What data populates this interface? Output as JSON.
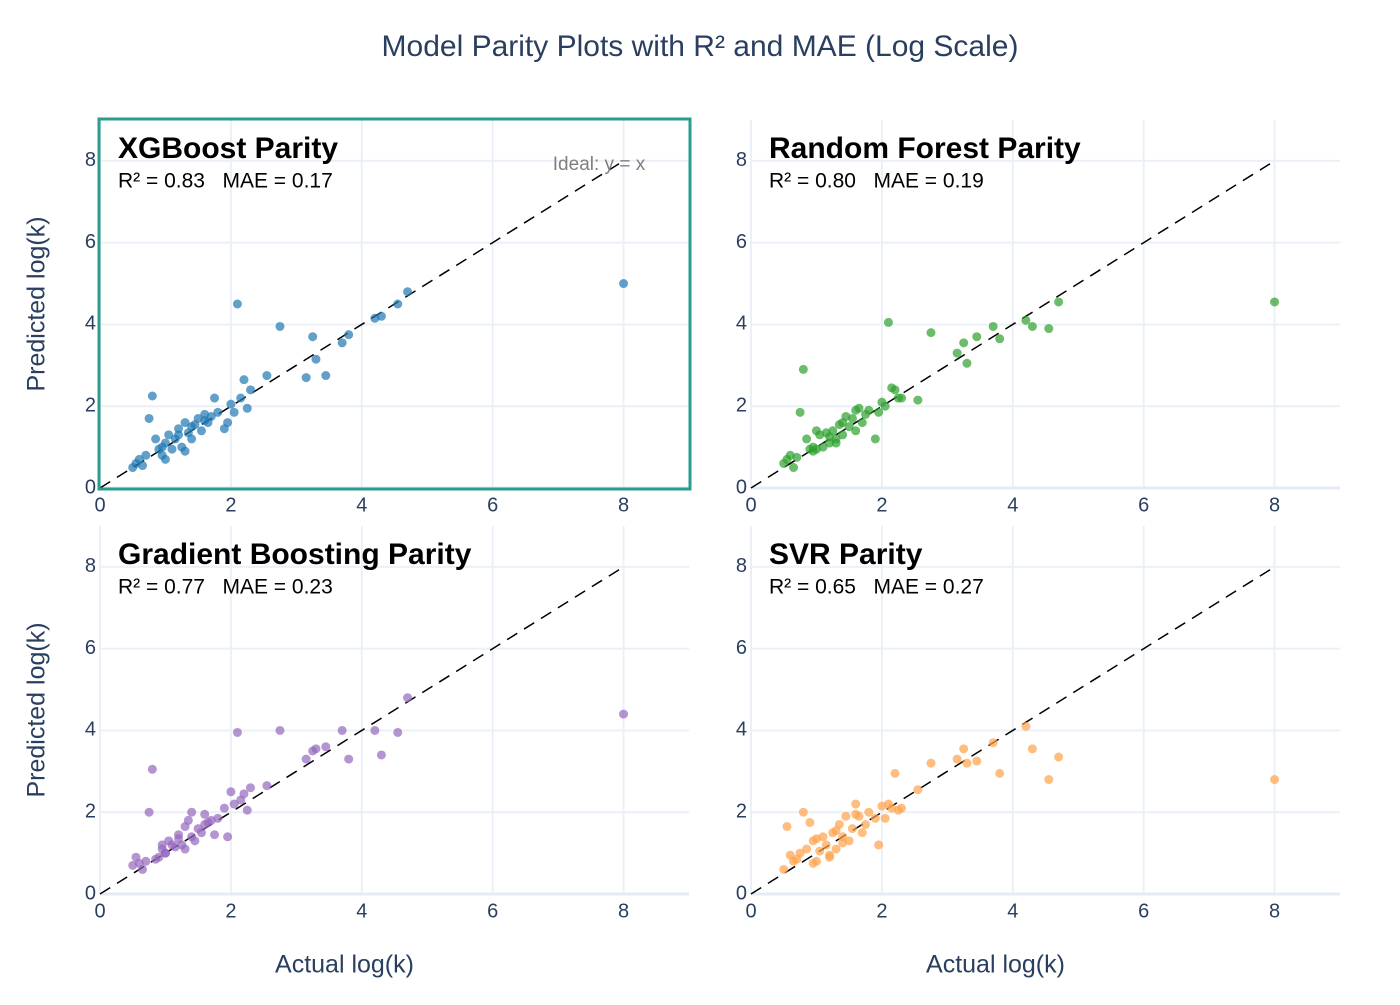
{
  "title": "Model Parity Plots with R² and MAE (Log Scale)",
  "chart_data": [
    {
      "type": "scatter",
      "title": "XGBoost Parity",
      "subtitle": "R² = 0.83   MAE = 0.17",
      "annotation": "Ideal: y = x",
      "highlighted": true,
      "ylabel": "Predicted log(k)",
      "color": "#1f77b4",
      "grid": true,
      "xlim": [
        0,
        9
      ],
      "ylim": [
        0,
        9
      ],
      "xticks": [
        0,
        2,
        4,
        6,
        8
      ],
      "yticks": [
        0,
        2,
        4,
        6,
        8
      ],
      "reference_line": {
        "x": [
          0,
          8
        ],
        "y": [
          0,
          8
        ]
      },
      "x": [
        8,
        2.1,
        2.75,
        3.25,
        3.3,
        3.15,
        3.45,
        3.7,
        3.8,
        4.2,
        4.3,
        4.55,
        4.7,
        2.55,
        2.3,
        2.2,
        2.15,
        2.0,
        1.95,
        1.9,
        1.8,
        1.75,
        1.7,
        1.65,
        1.6,
        1.55,
        1.5,
        1.45,
        1.4,
        1.35,
        1.3,
        1.25,
        1.2,
        1.15,
        1.1,
        1.05,
        1.0,
        0.95,
        0.9,
        0.85,
        0.8,
        0.75,
        0.7,
        0.65,
        0.6,
        0.55,
        0.5,
        1.3,
        1.0,
        2.05,
        1.2,
        0.95,
        1.6,
        2.25,
        1.4
      ],
      "y": [
        5.0,
        4.5,
        3.95,
        3.7,
        3.15,
        2.7,
        2.75,
        3.55,
        3.75,
        4.15,
        4.2,
        4.5,
        4.8,
        2.75,
        2.4,
        2.65,
        2.2,
        2.05,
        1.6,
        1.45,
        1.85,
        2.2,
        1.75,
        1.6,
        1.8,
        1.4,
        1.7,
        1.55,
        1.2,
        1.35,
        1.6,
        1.0,
        1.45,
        1.2,
        0.95,
        1.3,
        1.1,
        0.8,
        0.95,
        1.2,
        2.25,
        1.7,
        0.8,
        0.55,
        0.7,
        0.6,
        0.5,
        0.9,
        0.7,
        1.85,
        1.3,
        1.0,
        1.65,
        1.95,
        1.5
      ]
    },
    {
      "type": "scatter",
      "title": "Random Forest Parity",
      "subtitle": "R² = 0.80   MAE = 0.19",
      "color": "#2ca02c",
      "grid": true,
      "xlim": [
        0,
        9
      ],
      "ylim": [
        0,
        9
      ],
      "xticks": [
        0,
        2,
        4,
        6,
        8
      ],
      "yticks": [
        0,
        2,
        4,
        6,
        8
      ],
      "reference_line": {
        "x": [
          0,
          8
        ],
        "y": [
          0,
          8
        ]
      },
      "x": [
        8,
        2.1,
        2.75,
        3.25,
        3.3,
        3.15,
        3.45,
        3.7,
        3.8,
        4.2,
        4.3,
        4.55,
        4.7,
        2.55,
        2.3,
        2.2,
        2.15,
        2.0,
        1.95,
        1.9,
        1.8,
        1.75,
        1.7,
        1.65,
        1.6,
        1.55,
        1.5,
        1.45,
        1.4,
        1.35,
        1.3,
        1.25,
        1.2,
        1.15,
        1.1,
        1.05,
        1.0,
        0.95,
        0.9,
        0.85,
        0.8,
        0.75,
        0.7,
        0.65,
        0.6,
        0.55,
        0.5,
        1.3,
        1.0,
        2.05,
        1.2,
        0.95,
        1.6,
        2.25,
        1.4
      ],
      "y": [
        4.55,
        4.05,
        3.8,
        3.55,
        3.05,
        3.3,
        3.7,
        3.95,
        3.65,
        4.1,
        3.95,
        3.9,
        4.55,
        2.15,
        2.2,
        2.4,
        2.45,
        2.1,
        1.85,
        1.2,
        1.9,
        1.8,
        1.6,
        1.95,
        1.9,
        1.7,
        1.5,
        1.75,
        1.3,
        1.55,
        1.2,
        1.4,
        1.1,
        1.35,
        1.0,
        1.3,
        1.4,
        1.0,
        0.95,
        1.2,
        2.9,
        1.85,
        0.75,
        0.5,
        0.8,
        0.7,
        0.6,
        1.1,
        0.95,
        2.0,
        1.25,
        0.9,
        1.4,
        2.2,
        1.6
      ]
    },
    {
      "type": "scatter",
      "title": "Gradient Boosting Parity",
      "subtitle": "R² = 0.77   MAE = 0.23",
      "xlabel": "Actual log(k)",
      "ylabel": "Predicted log(k)",
      "color": "#9467bd",
      "grid": true,
      "xlim": [
        0,
        9
      ],
      "ylim": [
        0,
        9
      ],
      "xticks": [
        0,
        2,
        4,
        6,
        8
      ],
      "yticks": [
        0,
        2,
        4,
        6,
        8
      ],
      "reference_line": {
        "x": [
          0,
          8
        ],
        "y": [
          0,
          8
        ]
      },
      "x": [
        8,
        2.1,
        2.75,
        3.25,
        3.3,
        3.15,
        3.45,
        3.7,
        3.8,
        4.2,
        4.3,
        4.55,
        4.7,
        2.55,
        2.3,
        2.2,
        2.15,
        2.0,
        1.95,
        1.9,
        1.8,
        1.75,
        1.7,
        1.65,
        1.6,
        1.55,
        1.5,
        1.45,
        1.4,
        1.35,
        1.3,
        1.25,
        1.2,
        1.15,
        1.1,
        1.05,
        1.0,
        0.95,
        0.9,
        0.85,
        0.8,
        0.75,
        0.7,
        0.65,
        0.6,
        0.55,
        0.5,
        1.3,
        1.0,
        2.05,
        1.2,
        0.95,
        1.6,
        2.25,
        1.4
      ],
      "y": [
        4.4,
        3.95,
        4.0,
        3.5,
        3.55,
        3.3,
        3.6,
        4.0,
        3.3,
        4.0,
        3.4,
        3.95,
        4.8,
        2.65,
        2.6,
        2.45,
        2.3,
        2.5,
        1.4,
        2.1,
        1.85,
        1.45,
        1.8,
        1.75,
        1.95,
        1.5,
        1.6,
        1.3,
        1.4,
        1.8,
        1.65,
        1.2,
        1.45,
        1.15,
        1.2,
        1.3,
        1.0,
        1.1,
        0.9,
        0.85,
        3.05,
        2.0,
        0.8,
        0.6,
        0.75,
        0.9,
        0.7,
        1.1,
        1.0,
        2.2,
        1.35,
        1.2,
        1.7,
        2.05,
        2.0
      ]
    },
    {
      "type": "scatter",
      "title": "SVR Parity",
      "subtitle": "R² = 0.65   MAE = 0.27",
      "xlabel": "Actual log(k)",
      "color": "#ffa24a",
      "grid": true,
      "xlim": [
        0,
        9
      ],
      "ylim": [
        0,
        9
      ],
      "xticks": [
        0,
        2,
        4,
        6,
        8
      ],
      "yticks": [
        0,
        2,
        4,
        6,
        8
      ],
      "reference_line": {
        "x": [
          0,
          8
        ],
        "y": [
          0,
          8
        ]
      },
      "x": [
        8,
        2.1,
        2.75,
        3.25,
        3.3,
        3.15,
        3.45,
        3.7,
        3.8,
        4.2,
        4.3,
        4.55,
        4.7,
        2.55,
        2.3,
        2.2,
        2.15,
        2.0,
        1.95,
        1.9,
        1.8,
        1.75,
        1.7,
        1.65,
        1.6,
        1.55,
        1.5,
        1.45,
        1.4,
        1.35,
        1.3,
        1.25,
        1.2,
        1.15,
        1.1,
        1.05,
        1.0,
        0.95,
        0.9,
        0.85,
        0.8,
        0.75,
        0.7,
        0.65,
        0.6,
        0.55,
        0.5,
        1.3,
        1.0,
        2.05,
        1.2,
        0.95,
        1.6,
        2.25,
        1.4
      ],
      "y": [
        2.8,
        2.2,
        3.2,
        3.55,
        3.2,
        3.3,
        3.25,
        3.7,
        2.95,
        4.1,
        3.55,
        2.8,
        3.35,
        2.55,
        2.1,
        2.95,
        2.1,
        2.15,
        1.2,
        1.85,
        2.0,
        1.7,
        1.5,
        1.9,
        2.2,
        1.6,
        1.3,
        1.9,
        1.4,
        1.7,
        1.1,
        1.5,
        0.95,
        1.2,
        1.4,
        1.05,
        0.8,
        1.3,
        1.75,
        1.1,
        2.0,
        1.0,
        0.85,
        0.8,
        0.95,
        1.65,
        0.6,
        1.55,
        1.35,
        1.85,
        0.9,
        0.75,
        1.95,
        2.05,
        1.25
      ]
    }
  ]
}
